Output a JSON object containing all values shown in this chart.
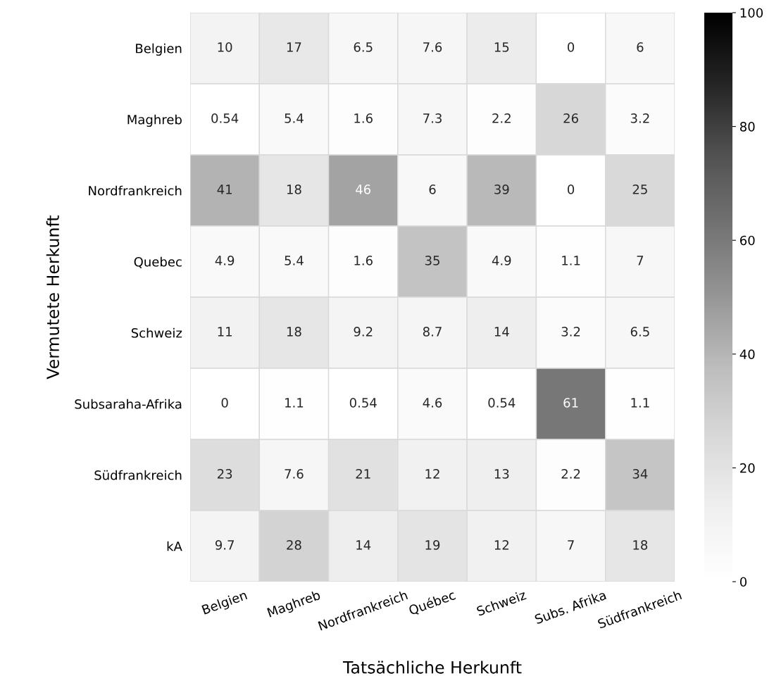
{
  "chart_data": {
    "type": "heatmap",
    "xlabel": "Tatsächliche Herkunft",
    "ylabel": "Vermutete Herkunft",
    "categories": [
      "Belgien",
      "Maghreb",
      "Nordfrankreich",
      "Québec",
      "Schweiz",
      "Subs. Afrika",
      "Südfrankreich"
    ],
    "y_categories": [
      "Belgien",
      "Maghreb",
      "Nordfrankreich",
      "Quebec",
      "Schweiz",
      "Subsaraha-Afrika",
      "Südfrankreich",
      "kA"
    ],
    "cells": [
      [
        10,
        17,
        6.5,
        7.6,
        15,
        0,
        6
      ],
      [
        0.54,
        5.4,
        1.6,
        7.3,
        2.2,
        26,
        3.2
      ],
      [
        41,
        18,
        46,
        6,
        39,
        0,
        25
      ],
      [
        4.9,
        5.4,
        1.6,
        35,
        4.9,
        1.1,
        7
      ],
      [
        11,
        18,
        9.2,
        8.7,
        14,
        3.2,
        6.5
      ],
      [
        0,
        1.1,
        0.54,
        4.6,
        0.54,
        61,
        1.1
      ],
      [
        23,
        7.6,
        21,
        12,
        13,
        2.2,
        34
      ],
      [
        9.7,
        28,
        14,
        19,
        12,
        7,
        18
      ]
    ],
    "clim": [
      0,
      100
    ],
    "cticks": [
      0,
      20,
      40,
      60,
      80,
      100
    ],
    "data_labels": true
  }
}
